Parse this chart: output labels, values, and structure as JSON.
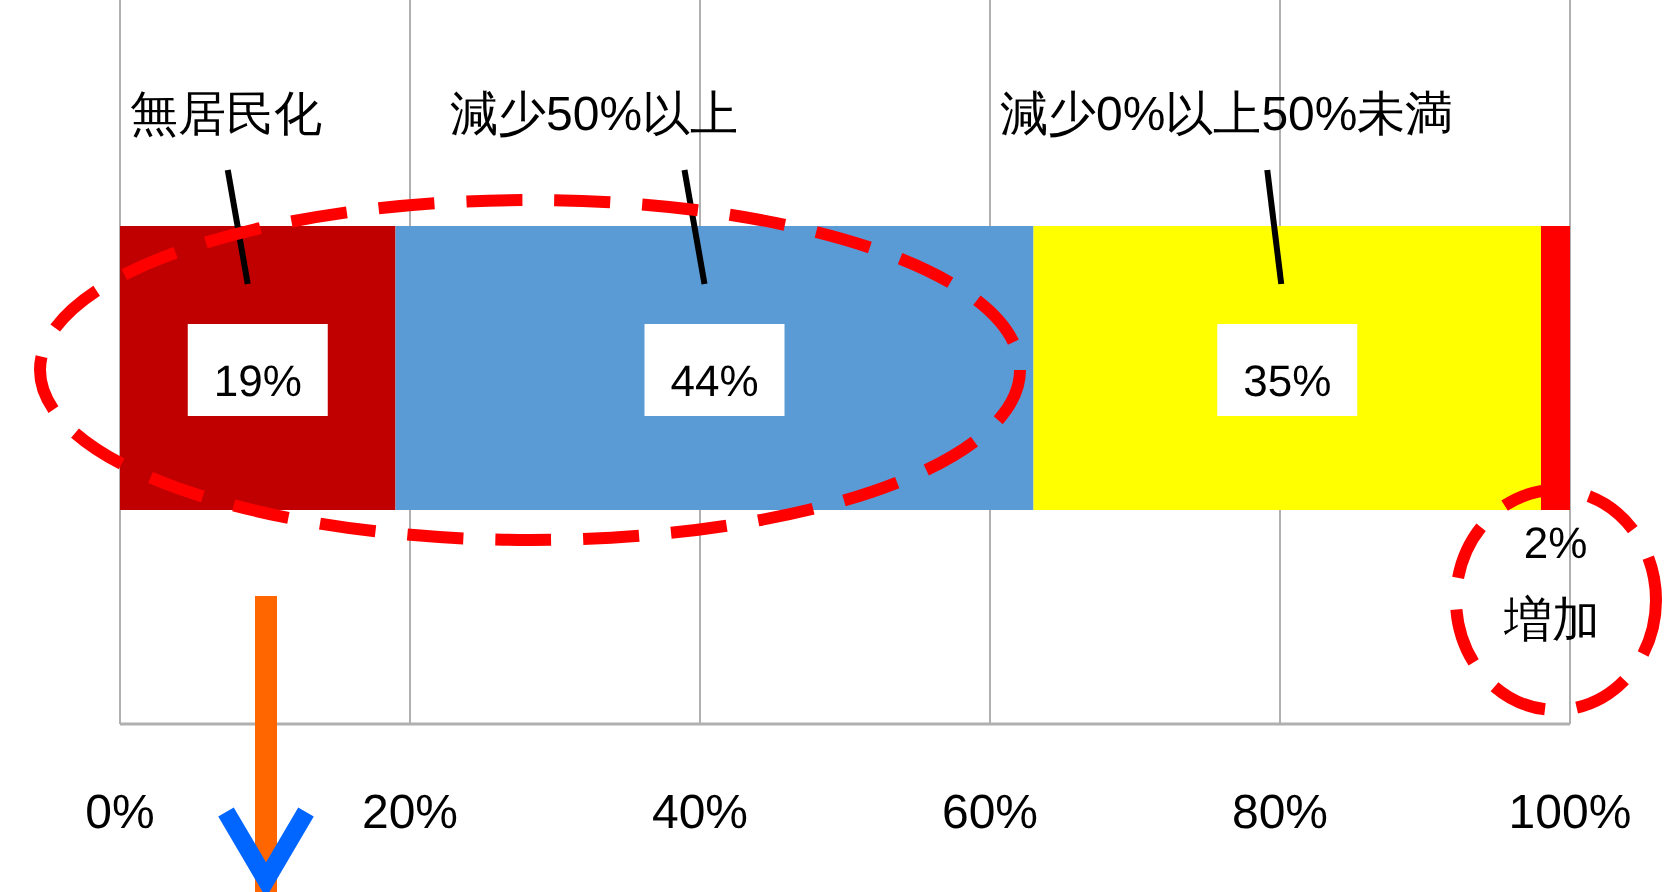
{
  "chart_data": {
    "type": "bar",
    "orientation": "horizontal",
    "stacked": true,
    "categories": [
      null
    ],
    "series": [
      {
        "name": "無居民化",
        "color": "#c00000",
        "values": [
          19
        ],
        "value_labels": [
          "19%"
        ]
      },
      {
        "name": "減少50%以上",
        "color": "#5b9bd5",
        "values": [
          44
        ],
        "value_labels": [
          "44%"
        ]
      },
      {
        "name": "減少0%以上50%未満",
        "color": "#ffff00",
        "values": [
          35
        ],
        "value_labels": [
          "35%"
        ]
      },
      {
        "name": "増加",
        "color": "#ff0000",
        "values": [
          2
        ],
        "value_labels": [
          "2%"
        ]
      }
    ],
    "xlim": [
      0,
      100
    ],
    "xticks": [
      {
        "value": 0,
        "label": "0%"
      },
      {
        "value": 20,
        "label": "20%"
      },
      {
        "value": 40,
        "label": "40%"
      },
      {
        "value": 60,
        "label": "60%"
      },
      {
        "value": 80,
        "label": "80%"
      },
      {
        "value": 100,
        "label": "100%"
      }
    ],
    "grid": "x",
    "tick_labels": "x"
  }
}
